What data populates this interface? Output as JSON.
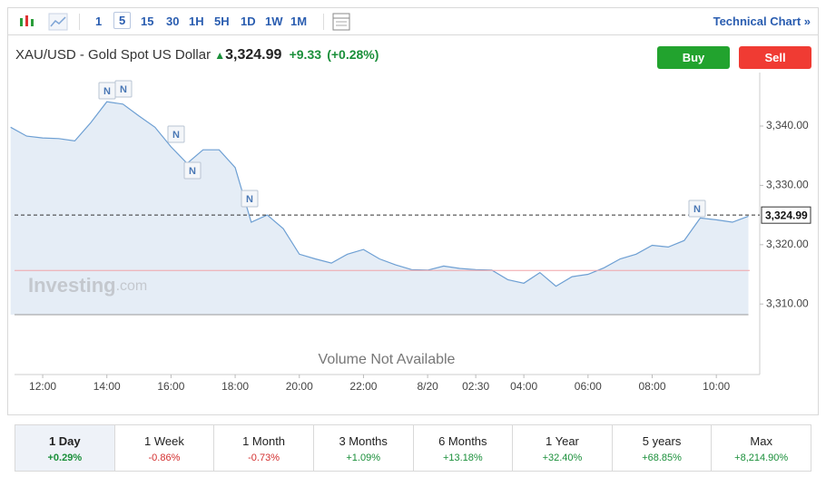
{
  "toolbar": {
    "intervals": [
      "1",
      "5",
      "15",
      "30",
      "1H",
      "5H",
      "1D",
      "1W",
      "1M"
    ],
    "technical_chart": "Technical Chart »"
  },
  "header": {
    "instrument": "XAU/USD - Gold Spot US Dollar",
    "change": "+9.33",
    "change_pct": "(+0.28%)",
    "buy": "Buy",
    "sell": "Sell"
  },
  "chart_data": {
    "type": "line",
    "categories": [
      null,
      null,
      "12:00",
      null,
      null,
      null,
      "14:00",
      null,
      null,
      null,
      "16:00",
      null,
      null,
      null,
      "18:00",
      null,
      null,
      null,
      "20:00",
      null,
      null,
      null,
      "22:00",
      null,
      null,
      null,
      "8/20",
      null,
      null,
      "02:30",
      null,
      null,
      "04:00",
      null,
      null,
      null,
      "06:00",
      null,
      null,
      null,
      "08:00",
      null,
      null,
      null,
      "10:00",
      null,
      null
    ],
    "values": [
      3339.8,
      3338.3,
      3338,
      3337.9,
      3337.5,
      3340.6,
      3344.1,
      3343.7,
      3341.7,
      3339.8,
      3336.5,
      3333.7,
      3336,
      3336,
      3333,
      3323.8,
      3325,
      3322.7,
      3318.4,
      3317.6,
      3316.9,
      3318.4,
      3319.2,
      3317.6,
      3316.6,
      3315.8,
      3315.7,
      3316.4,
      3316,
      3315.8,
      3315.7,
      3314.1,
      3313.5,
      3315.3,
      3313,
      3314.6,
      3315,
      3316.1,
      3317.6,
      3318.4,
      3319.9,
      3319.6,
      3320.7,
      3324.5,
      3324.2,
      3323.8,
      3324.8
    ],
    "color": "#6d9fd3",
    "fill": "#e5edf6",
    "ylim": [
      3308.2,
      3347.8
    ],
    "yticks": [
      {
        "value": 3310,
        "label": "3,310.00"
      },
      {
        "value": 3320,
        "label": "3,320.00"
      },
      {
        "value": 3330,
        "label": "3,330.00"
      },
      {
        "value": 3340,
        "label": "3,340.00"
      }
    ],
    "last_price": {
      "value": 3324.99,
      "label": "3,324.99"
    },
    "prev_close": 3315.65,
    "news_marker": "N",
    "watermark": "Investing",
    "watermark_suffix": ".com",
    "volume_note": "Volume Not Available"
  },
  "periods": [
    {
      "label": "1 Day",
      "change": "+0.29%"
    },
    {
      "label": "1 Week",
      "change": "-0.86%"
    },
    {
      "label": "1 Month",
      "change": "-0.73%"
    },
    {
      "label": "3 Months",
      "change": "+1.09%"
    },
    {
      "label": "6 Months",
      "change": "+13.18%"
    },
    {
      "label": "1 Year",
      "change": "+32.40%"
    },
    {
      "label": "5 years",
      "change": "+68.85%"
    },
    {
      "label": "Max",
      "change": "+8,214.90%"
    }
  ]
}
